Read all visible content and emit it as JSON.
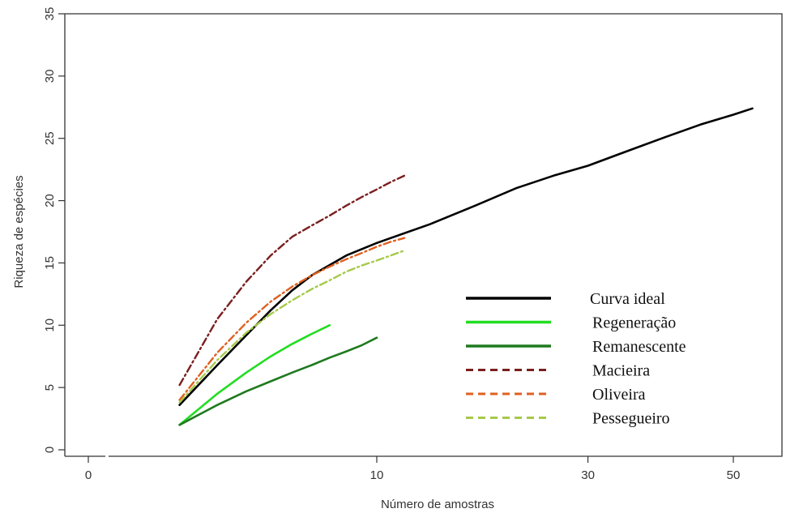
{
  "chart_data": {
    "type": "line",
    "title": "",
    "xlabel": "Número de amostras",
    "ylabel": "Riqueza de espécies",
    "xlim": [
      -1,
      64
    ],
    "ylim": [
      -0.5,
      35
    ],
    "x_scale": "sqrt",
    "x_ticks": [
      {
        "value": 0,
        "label": "0"
      },
      {
        "value": 10,
        "label": "10"
      },
      {
        "value": 30,
        "label": "30"
      },
      {
        "value": 50,
        "label": "50"
      }
    ],
    "y_ticks": [
      {
        "value": 0,
        "label": "0"
      },
      {
        "value": 5,
        "label": "5"
      },
      {
        "value": 10,
        "label": "10"
      },
      {
        "value": 15,
        "label": "15"
      },
      {
        "value": 20,
        "label": "20"
      },
      {
        "value": 25,
        "label": "25"
      },
      {
        "value": 30,
        "label": "30"
      },
      {
        "value": 35,
        "label": "35"
      }
    ],
    "grid": false,
    "legend_position": "bottom-right",
    "series": [
      {
        "name": "Curva ideal",
        "color": "#000000",
        "dash": "solid",
        "x": [
          1,
          2,
          3,
          4,
          5,
          6,
          8,
          10,
          14,
          18,
          22,
          26,
          30,
          35,
          40,
          45,
          50,
          53
        ],
        "y": [
          3.6,
          6.8,
          9.2,
          11.2,
          12.8,
          14.0,
          15.6,
          16.6,
          18.1,
          19.6,
          21.0,
          22.0,
          22.8,
          24.0,
          25.1,
          26.1,
          26.9,
          27.4
        ]
      },
      {
        "name": "Regeneração",
        "color": "#22dd22",
        "dash": "solid",
        "x": [
          1,
          2,
          3,
          4,
          5,
          6,
          7
        ],
        "y": [
          2.0,
          4.5,
          6.2,
          7.5,
          8.5,
          9.3,
          10.0
        ]
      },
      {
        "name": "Remanescente",
        "color": "#1f7a1f",
        "dash": "solid",
        "x": [
          1,
          2,
          3,
          4,
          5,
          6,
          7,
          8,
          9,
          10
        ],
        "y": [
          2.0,
          3.6,
          4.7,
          5.5,
          6.2,
          6.8,
          7.4,
          7.9,
          8.4,
          9.0
        ]
      },
      {
        "name": "Macieira",
        "color": "#7a1f1f",
        "dash": "dashdot",
        "x": [
          1,
          2,
          3,
          4,
          5,
          6,
          7,
          8,
          9,
          10,
          11,
          12
        ],
        "y": [
          5.2,
          10.5,
          13.5,
          15.6,
          17.1,
          18.0,
          18.8,
          19.6,
          20.3,
          20.9,
          21.5,
          22.0
        ]
      },
      {
        "name": "Oliveira",
        "color": "#e06020",
        "dash": "dashdot",
        "x": [
          1,
          2,
          3,
          4,
          5,
          6,
          7,
          8,
          9,
          10,
          11,
          12
        ],
        "y": [
          4.0,
          7.8,
          10.2,
          11.9,
          13.1,
          14.0,
          14.7,
          15.3,
          15.8,
          16.3,
          16.7,
          17.0
        ]
      },
      {
        "name": "Pessegueiro",
        "color": "#a6c94a",
        "dash": "dashdot",
        "x": [
          1,
          2,
          3,
          4,
          5,
          6,
          7,
          8,
          9,
          10,
          11,
          12
        ],
        "y": [
          3.8,
          7.2,
          9.4,
          10.9,
          12.0,
          12.9,
          13.6,
          14.3,
          14.8,
          15.2,
          15.6,
          16.0
        ]
      }
    ]
  }
}
